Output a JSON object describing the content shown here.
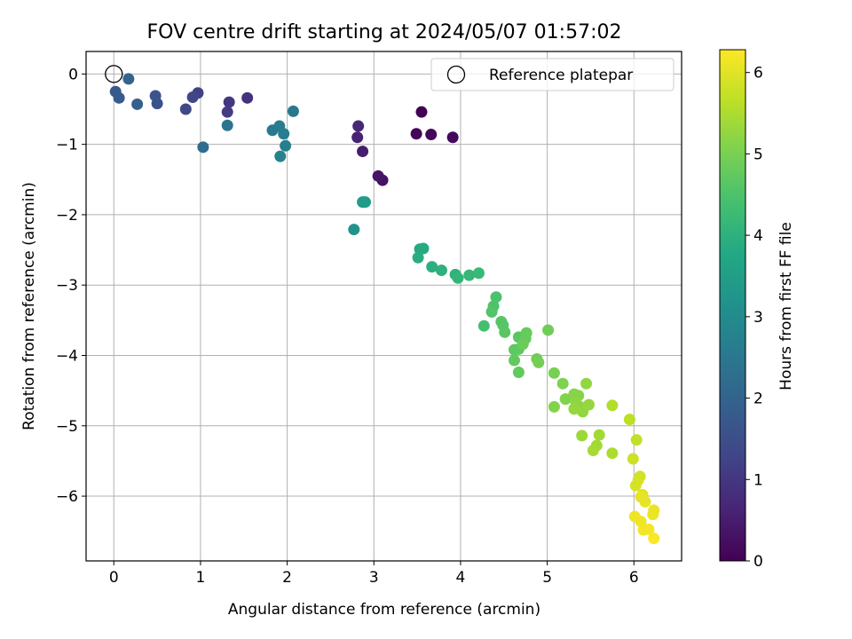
{
  "chart_data": {
    "type": "scatter",
    "title": "FOV centre drift starting at 2024/05/07 01:57:02",
    "xlabel": "Angular distance from reference (arcmin)",
    "ylabel": "Rotation from reference (arcmin)",
    "xlim": [
      -0.32,
      6.55
    ],
    "ylim": [
      -6.92,
      0.32
    ],
    "xticks": [
      0,
      1,
      2,
      3,
      4,
      5,
      6
    ],
    "xtick_labels": [
      "0",
      "1",
      "2",
      "3",
      "4",
      "5",
      "6"
    ],
    "yticks": [
      0,
      -1,
      -2,
      -3,
      -4,
      -5,
      -6
    ],
    "ytick_labels": [
      "0",
      "−1",
      "−2",
      "−3",
      "−4",
      "−5",
      "−6"
    ],
    "grid": true,
    "colormap": "viridis",
    "colorbar": {
      "label": "Hours from first FF file",
      "range": [
        0,
        6.28
      ],
      "ticks": [
        0,
        1,
        2,
        3,
        4,
        5,
        6
      ],
      "tick_labels": [
        "0",
        "1",
        "2",
        "3",
        "4",
        "5",
        "6"
      ]
    },
    "legend": {
      "position": "top-right",
      "entries": [
        "Reference platepar"
      ]
    },
    "reference": {
      "x": 0,
      "y": 0,
      "marker": "open-circle"
    },
    "points": [
      {
        "x": 3.55,
        "y": -0.54,
        "c": 0.0
      },
      {
        "x": 3.49,
        "y": -0.85,
        "c": 0.05
      },
      {
        "x": 3.66,
        "y": -0.86,
        "c": 0.1
      },
      {
        "x": 3.91,
        "y": -0.9,
        "c": 0.15
      },
      {
        "x": 3.1,
        "y": -1.51,
        "c": 0.3
      },
      {
        "x": 3.05,
        "y": -1.45,
        "c": 0.35
      },
      {
        "x": 2.87,
        "y": -1.1,
        "c": 0.5
      },
      {
        "x": 2.81,
        "y": -0.9,
        "c": 0.6
      },
      {
        "x": 2.82,
        "y": -0.74,
        "c": 0.7
      },
      {
        "x": 1.54,
        "y": -0.34,
        "c": 0.9
      },
      {
        "x": 1.33,
        "y": -0.4,
        "c": 1.0
      },
      {
        "x": 1.31,
        "y": -0.54,
        "c": 1.1
      },
      {
        "x": 0.97,
        "y": -0.27,
        "c": 1.2
      },
      {
        "x": 0.91,
        "y": -0.33,
        "c": 1.3
      },
      {
        "x": 0.83,
        "y": -0.5,
        "c": 1.4
      },
      {
        "x": 0.5,
        "y": -0.42,
        "c": 1.55
      },
      {
        "x": 0.48,
        "y": -0.31,
        "c": 1.65
      },
      {
        "x": 0.02,
        "y": -0.25,
        "c": 1.75
      },
      {
        "x": 0.06,
        "y": -0.34,
        "c": 1.8
      },
      {
        "x": 0.27,
        "y": -0.43,
        "c": 1.9
      },
      {
        "x": 0.17,
        "y": -0.07,
        "c": 2.0
      },
      {
        "x": 1.03,
        "y": -1.04,
        "c": 2.2
      },
      {
        "x": 1.31,
        "y": -0.73,
        "c": 2.4
      },
      {
        "x": 2.07,
        "y": -0.53,
        "c": 2.5
      },
      {
        "x": 1.83,
        "y": -0.8,
        "c": 2.55
      },
      {
        "x": 1.91,
        "y": -0.74,
        "c": 2.6
      },
      {
        "x": 1.96,
        "y": -0.85,
        "c": 2.65
      },
      {
        "x": 1.98,
        "y": -1.02,
        "c": 2.7
      },
      {
        "x": 1.92,
        "y": -1.17,
        "c": 2.75
      },
      {
        "x": 2.77,
        "y": -2.21,
        "c": 3.2
      },
      {
        "x": 2.87,
        "y": -1.82,
        "c": 3.4
      },
      {
        "x": 2.9,
        "y": -1.82,
        "c": 3.45
      },
      {
        "x": 3.53,
        "y": -2.49,
        "c": 3.8
      },
      {
        "x": 3.57,
        "y": -2.48,
        "c": 3.85
      },
      {
        "x": 3.51,
        "y": -2.61,
        "c": 3.9
      },
      {
        "x": 3.67,
        "y": -2.74,
        "c": 3.95
      },
      {
        "x": 3.78,
        "y": -2.79,
        "c": 4.0
      },
      {
        "x": 3.94,
        "y": -2.85,
        "c": 4.05
      },
      {
        "x": 3.97,
        "y": -2.9,
        "c": 4.1
      },
      {
        "x": 4.1,
        "y": -2.86,
        "c": 4.15
      },
      {
        "x": 4.21,
        "y": -2.83,
        "c": 4.2
      },
      {
        "x": 4.27,
        "y": -3.58,
        "c": 4.4
      },
      {
        "x": 4.41,
        "y": -3.17,
        "c": 4.45
      },
      {
        "x": 4.38,
        "y": -3.3,
        "c": 4.5
      },
      {
        "x": 4.36,
        "y": -3.38,
        "c": 4.55
      },
      {
        "x": 4.47,
        "y": -3.52,
        "c": 4.6
      },
      {
        "x": 4.49,
        "y": -3.57,
        "c": 4.6
      },
      {
        "x": 4.51,
        "y": -3.67,
        "c": 4.65
      },
      {
        "x": 4.67,
        "y": -3.74,
        "c": 4.65
      },
      {
        "x": 4.62,
        "y": -3.92,
        "c": 4.7
      },
      {
        "x": 4.67,
        "y": -3.91,
        "c": 4.7
      },
      {
        "x": 4.62,
        "y": -4.07,
        "c": 4.75
      },
      {
        "x": 4.67,
        "y": -4.24,
        "c": 4.75
      },
      {
        "x": 4.75,
        "y": -3.76,
        "c": 4.8
      },
      {
        "x": 4.76,
        "y": -3.68,
        "c": 4.8
      },
      {
        "x": 4.72,
        "y": -3.84,
        "c": 4.85
      },
      {
        "x": 5.01,
        "y": -3.64,
        "c": 4.9
      },
      {
        "x": 4.88,
        "y": -4.05,
        "c": 4.9
      },
      {
        "x": 4.9,
        "y": -4.1,
        "c": 4.95
      },
      {
        "x": 5.08,
        "y": -4.25,
        "c": 5.0
      },
      {
        "x": 5.18,
        "y": -4.4,
        "c": 5.05
      },
      {
        "x": 5.21,
        "y": -4.62,
        "c": 5.1
      },
      {
        "x": 5.08,
        "y": -4.73,
        "c": 5.1
      },
      {
        "x": 5.31,
        "y": -4.55,
        "c": 5.15
      },
      {
        "x": 5.36,
        "y": -4.57,
        "c": 5.15
      },
      {
        "x": 5.33,
        "y": -4.66,
        "c": 5.2
      },
      {
        "x": 5.38,
        "y": -4.73,
        "c": 5.2
      },
      {
        "x": 5.45,
        "y": -4.4,
        "c": 5.25
      },
      {
        "x": 5.41,
        "y": -4.8,
        "c": 5.25
      },
      {
        "x": 5.31,
        "y": -4.76,
        "c": 5.3
      },
      {
        "x": 5.48,
        "y": -4.7,
        "c": 5.3
      },
      {
        "x": 5.4,
        "y": -5.14,
        "c": 5.35
      },
      {
        "x": 5.6,
        "y": -5.13,
        "c": 5.4
      },
      {
        "x": 5.57,
        "y": -5.28,
        "c": 5.4
      },
      {
        "x": 5.53,
        "y": -5.35,
        "c": 5.45
      },
      {
        "x": 5.75,
        "y": -5.39,
        "c": 5.5
      },
      {
        "x": 5.75,
        "y": -4.71,
        "c": 5.55
      },
      {
        "x": 5.95,
        "y": -4.91,
        "c": 5.65
      },
      {
        "x": 6.03,
        "y": -5.2,
        "c": 5.7
      },
      {
        "x": 5.99,
        "y": -5.47,
        "c": 5.8
      },
      {
        "x": 6.07,
        "y": -5.72,
        "c": 5.85
      },
      {
        "x": 6.05,
        "y": -5.77,
        "c": 5.9
      },
      {
        "x": 6.02,
        "y": -5.85,
        "c": 5.9
      },
      {
        "x": 6.1,
        "y": -5.98,
        "c": 6.0
      },
      {
        "x": 6.08,
        "y": -6.01,
        "c": 6.05
      },
      {
        "x": 6.13,
        "y": -6.08,
        "c": 6.05
      },
      {
        "x": 6.23,
        "y": -6.2,
        "c": 6.1
      },
      {
        "x": 6.22,
        "y": -6.26,
        "c": 6.1
      },
      {
        "x": 6.01,
        "y": -6.29,
        "c": 6.15
      },
      {
        "x": 6.08,
        "y": -6.36,
        "c": 6.15
      },
      {
        "x": 6.11,
        "y": -6.48,
        "c": 6.2
      },
      {
        "x": 6.17,
        "y": -6.47,
        "c": 6.2
      },
      {
        "x": 6.23,
        "y": -6.6,
        "c": 6.25
      }
    ]
  }
}
